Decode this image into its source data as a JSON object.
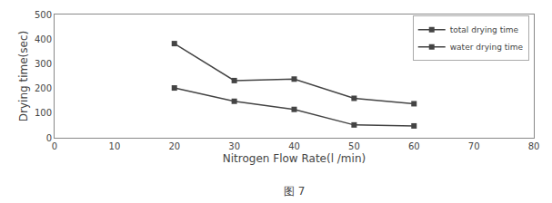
{
  "chart_data": {
    "type": "line",
    "xlabel": "Nitrogen Flow Rate(l /min)",
    "ylabel": "Drying time(sec)",
    "annotations": [
      "图 7"
    ],
    "x": [
      20,
      30,
      40,
      50,
      60
    ],
    "series": [
      {
        "name": "total drying time",
        "color": "#444444",
        "marker": "square",
        "line_style": "solid",
        "values": [
          382,
          232,
          238,
          160,
          138
        ]
      },
      {
        "name": "water drying time",
        "color": "#444444",
        "marker": "square",
        "line_style": "solid",
        "values": [
          202,
          148,
          115,
          52,
          48
        ]
      }
    ],
    "xlim": [
      0,
      80
    ],
    "ylim": [
      0,
      500
    ],
    "xticks": [
      0,
      10,
      20,
      30,
      40,
      50,
      60,
      70,
      80
    ],
    "yticks": [
      0,
      100,
      200,
      300,
      400,
      500
    ],
    "grid": false,
    "legend": "upper right"
  }
}
